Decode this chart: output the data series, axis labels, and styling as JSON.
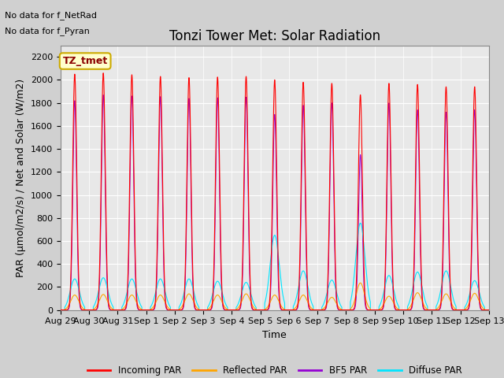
{
  "title": "Tonzi Tower Met: Solar Radiation",
  "ylabel": "PAR (μmol/m2/s) / Net and Solar (W/m2)",
  "xlabel": "Time",
  "annotations": [
    "No data for f_NetRad",
    "No data for f_Pyran"
  ],
  "legend_label_box": "TZ_tmet",
  "legend_entries": [
    "Incoming PAR",
    "Reflected PAR",
    "BF5 PAR",
    "Diffuse PAR"
  ],
  "legend_colors": [
    "#ff0000",
    "#ffa500",
    "#9400d3",
    "#00e5ff"
  ],
  "ylim": [
    0,
    2300
  ],
  "yticks": [
    0,
    200,
    400,
    600,
    800,
    1000,
    1200,
    1400,
    1600,
    1800,
    2000,
    2200
  ],
  "num_days": 15,
  "x_tick_labels": [
    "Aug 29",
    "Aug 30",
    "Aug 31",
    "Sep 1",
    "Sep 2",
    "Sep 3",
    "Sep 4",
    "Sep 5",
    "Sep 6",
    "Sep 7",
    "Sep 8",
    "Sep 9",
    "Sep 10",
    "Sep 11",
    "Sep 12",
    "Sep 13"
  ],
  "incoming_par_peaks": [
    2050,
    2060,
    2045,
    2030,
    2020,
    2025,
    2030,
    2000,
    1980,
    1970,
    1870,
    1970,
    1960,
    1940,
    1940
  ],
  "bf5_par_peaks": [
    1820,
    1870,
    1860,
    1855,
    1840,
    1845,
    1850,
    1700,
    1780,
    1800,
    1350,
    1800,
    1740,
    1720,
    1740
  ],
  "reflected_par_peaks": [
    130,
    135,
    130,
    130,
    140,
    130,
    140,
    130,
    130,
    110,
    235,
    120,
    150,
    140,
    145
  ],
  "diffuse_par_peaks": [
    270,
    280,
    270,
    270,
    270,
    250,
    240,
    650,
    340,
    260,
    755,
    300,
    330,
    340,
    255
  ],
  "title_fontsize": 12,
  "axis_label_fontsize": 9,
  "tick_fontsize": 8
}
